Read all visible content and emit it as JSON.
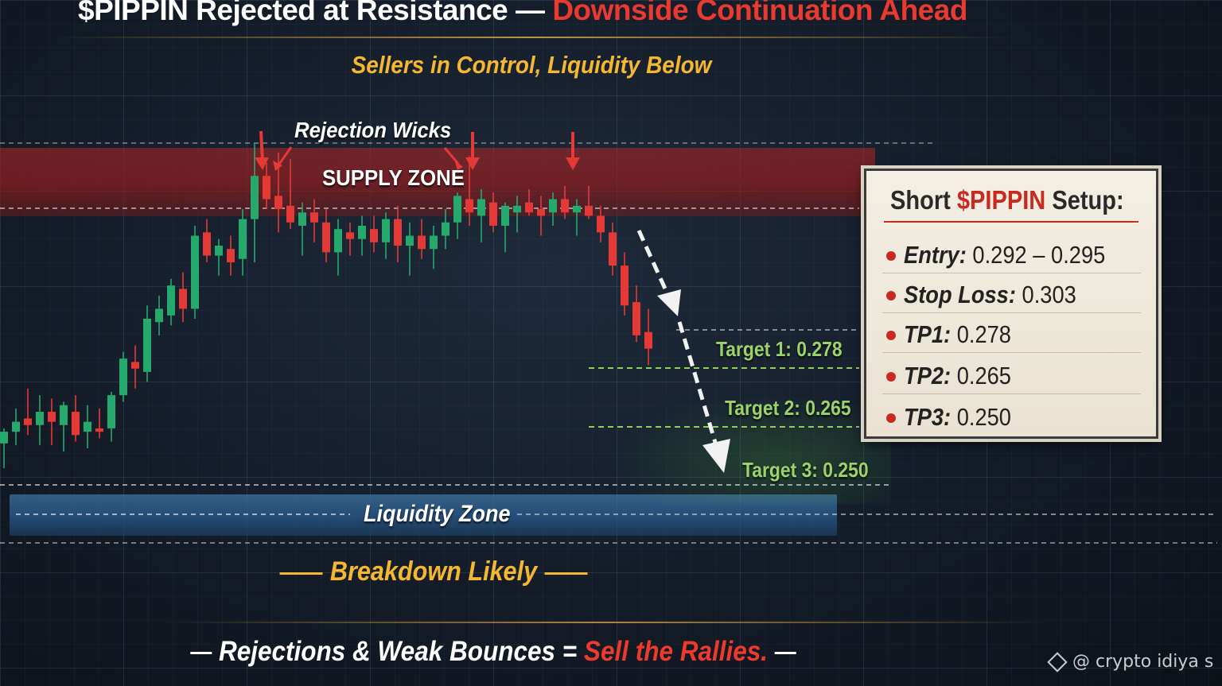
{
  "title": {
    "main": "$PIPPIN Rejected at Resistance —",
    "accent": "Downside Continuation Ahead"
  },
  "subtitle": "Sellers in Control, Liquidity Below",
  "labels": {
    "rejection_wicks": "Rejection Wicks",
    "supply_zone": "SUPPLY ZONE",
    "liquidity_zone": "Liquidity Zone",
    "breakdown": "Breakdown Likely"
  },
  "targets": [
    {
      "label": "Target 1: 0.278"
    },
    {
      "label": "Target 2: 0.265"
    },
    {
      "label": "Target 3: 0.250"
    }
  ],
  "setup_panel": {
    "title_prefix": "Short",
    "title_accent": "$PIPPIN",
    "title_suffix": "Setup:",
    "rows": [
      {
        "key": "Entry:",
        "value": "0.292 – 0.295"
      },
      {
        "key": "Stop Loss:",
        "value": "0.303"
      },
      {
        "key": "TP1:",
        "value": "0.278"
      },
      {
        "key": "TP2:",
        "value": "0.265"
      },
      {
        "key": "TP3:",
        "value": "0.250"
      }
    ]
  },
  "tagline": {
    "main": "Rejections & Weak Bounces =",
    "accent": "Sell the Rallies."
  },
  "watermark": "@ crypto idiya s",
  "icons": {
    "watermark": "diamond-logo-icon",
    "arrows": "down-arrow-icon"
  },
  "colors": {
    "bullish": "#26a96c",
    "bearish": "#e53935",
    "accent_gold": "#f5b731",
    "accent_red": "#e83a2e",
    "target_green": "#9bd36a"
  },
  "chart_data": {
    "type": "candlestick",
    "y_domain": [
      0.245,
      0.345
    ],
    "levels": {
      "supply_zone": [
        0.311,
        0.327
      ],
      "resistance": 0.313,
      "entry": [
        0.292,
        0.295
      ],
      "stop_loss": 0.303,
      "tp1": 0.278,
      "tp2": 0.265,
      "tp3": 0.25,
      "liquidity_zone": [
        0.237,
        0.247
      ]
    },
    "candles": [
      {
        "o": 0.2575,
        "h": 0.262,
        "l": 0.25,
        "c": 0.261
      },
      {
        "o": 0.261,
        "h": 0.268,
        "l": 0.257,
        "c": 0.264
      },
      {
        "o": 0.265,
        "h": 0.274,
        "l": 0.26,
        "c": 0.263
      },
      {
        "o": 0.263,
        "h": 0.272,
        "l": 0.257,
        "c": 0.267
      },
      {
        "o": 0.267,
        "h": 0.271,
        "l": 0.257,
        "c": 0.264
      },
      {
        "o": 0.263,
        "h": 0.27,
        "l": 0.255,
        "c": 0.269
      },
      {
        "o": 0.267,
        "h": 0.272,
        "l": 0.258,
        "c": 0.26
      },
      {
        "o": 0.261,
        "h": 0.269,
        "l": 0.256,
        "c": 0.264
      },
      {
        "o": 0.262,
        "h": 0.268,
        "l": 0.259,
        "c": 0.261
      },
      {
        "o": 0.262,
        "h": 0.273,
        "l": 0.258,
        "c": 0.272
      },
      {
        "o": 0.272,
        "h": 0.285,
        "l": 0.27,
        "c": 0.283
      },
      {
        "o": 0.282,
        "h": 0.287,
        "l": 0.274,
        "c": 0.28
      },
      {
        "o": 0.279,
        "h": 0.299,
        "l": 0.276,
        "c": 0.295
      },
      {
        "o": 0.294,
        "h": 0.302,
        "l": 0.29,
        "c": 0.298
      },
      {
        "o": 0.296,
        "h": 0.307,
        "l": 0.293,
        "c": 0.305
      },
      {
        "o": 0.304,
        "h": 0.309,
        "l": 0.294,
        "c": 0.298
      },
      {
        "o": 0.298,
        "h": 0.323,
        "l": 0.295,
        "c": 0.32
      },
      {
        "o": 0.321,
        "h": 0.325,
        "l": 0.312,
        "c": 0.314
      },
      {
        "o": 0.314,
        "h": 0.319,
        "l": 0.308,
        "c": 0.317
      },
      {
        "o": 0.316,
        "h": 0.32,
        "l": 0.308,
        "c": 0.312
      },
      {
        "o": 0.313,
        "h": 0.328,
        "l": 0.308,
        "c": 0.325
      },
      {
        "o": 0.325,
        "h": 0.348,
        "l": 0.312,
        "c": 0.338
      },
      {
        "o": 0.338,
        "h": 0.342,
        "l": 0.328,
        "c": 0.331
      },
      {
        "o": 0.332,
        "h": 0.345,
        "l": 0.321,
        "c": 0.328
      },
      {
        "o": 0.329,
        "h": 0.343,
        "l": 0.322,
        "c": 0.324
      },
      {
        "o": 0.323,
        "h": 0.33,
        "l": 0.314,
        "c": 0.327
      },
      {
        "o": 0.327,
        "h": 0.331,
        "l": 0.318,
        "c": 0.324
      },
      {
        "o": 0.324,
        "h": 0.328,
        "l": 0.312,
        "c": 0.315
      },
      {
        "o": 0.315,
        "h": 0.325,
        "l": 0.308,
        "c": 0.322
      },
      {
        "o": 0.321,
        "h": 0.324,
        "l": 0.314,
        "c": 0.319
      },
      {
        "o": 0.319,
        "h": 0.326,
        "l": 0.314,
        "c": 0.323
      },
      {
        "o": 0.322,
        "h": 0.326,
        "l": 0.315,
        "c": 0.318
      },
      {
        "o": 0.318,
        "h": 0.327,
        "l": 0.313,
        "c": 0.325
      },
      {
        "o": 0.325,
        "h": 0.329,
        "l": 0.312,
        "c": 0.317
      },
      {
        "o": 0.317,
        "h": 0.324,
        "l": 0.308,
        "c": 0.32
      },
      {
        "o": 0.32,
        "h": 0.325,
        "l": 0.313,
        "c": 0.316
      },
      {
        "o": 0.316,
        "h": 0.323,
        "l": 0.31,
        "c": 0.32
      },
      {
        "o": 0.32,
        "h": 0.328,
        "l": 0.316,
        "c": 0.324
      },
      {
        "o": 0.324,
        "h": 0.333,
        "l": 0.319,
        "c": 0.332
      },
      {
        "o": 0.331,
        "h": 0.344,
        "l": 0.323,
        "c": 0.327
      },
      {
        "o": 0.326,
        "h": 0.334,
        "l": 0.318,
        "c": 0.331
      },
      {
        "o": 0.33,
        "h": 0.333,
        "l": 0.321,
        "c": 0.323
      },
      {
        "o": 0.323,
        "h": 0.33,
        "l": 0.315,
        "c": 0.329
      },
      {
        "o": 0.327,
        "h": 0.332,
        "l": 0.321,
        "c": 0.329
      },
      {
        "o": 0.33,
        "h": 0.334,
        "l": 0.326,
        "c": 0.327
      },
      {
        "o": 0.328,
        "h": 0.332,
        "l": 0.32,
        "c": 0.326
      },
      {
        "o": 0.327,
        "h": 0.333,
        "l": 0.323,
        "c": 0.331
      },
      {
        "o": 0.331,
        "h": 0.335,
        "l": 0.325,
        "c": 0.327
      },
      {
        "o": 0.327,
        "h": 0.331,
        "l": 0.32,
        "c": 0.329
      },
      {
        "o": 0.329,
        "h": 0.335,
        "l": 0.325,
        "c": 0.326
      },
      {
        "o": 0.326,
        "h": 0.329,
        "l": 0.318,
        "c": 0.321
      },
      {
        "o": 0.321,
        "h": 0.324,
        "l": 0.308,
        "c": 0.311
      },
      {
        "o": 0.311,
        "h": 0.315,
        "l": 0.296,
        "c": 0.299
      },
      {
        "o": 0.3,
        "h": 0.305,
        "l": 0.288,
        "c": 0.29
      },
      {
        "o": 0.291,
        "h": 0.298,
        "l": 0.281,
        "c": 0.286
      }
    ]
  }
}
